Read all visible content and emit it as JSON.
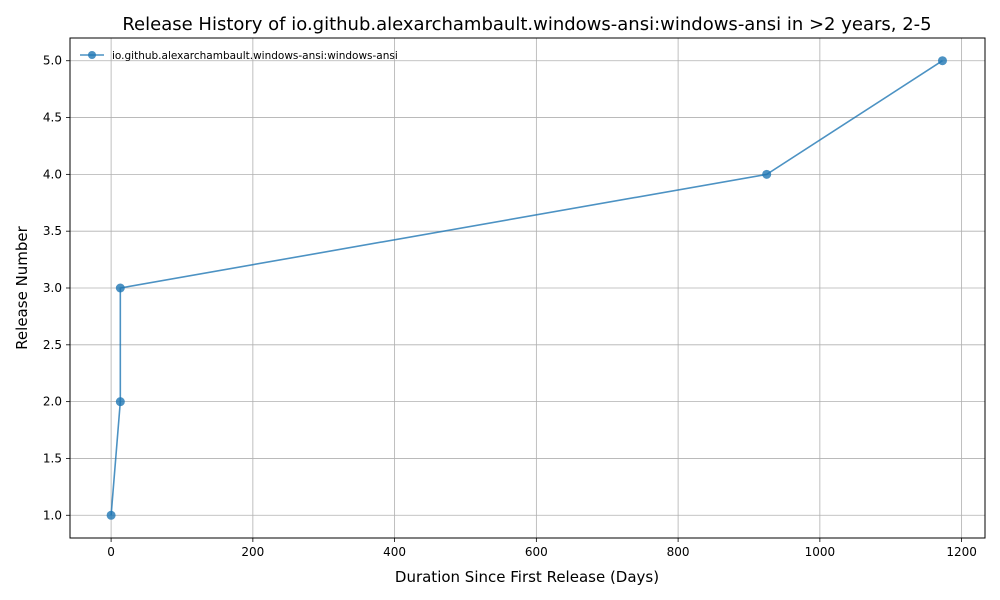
{
  "chart_data": {
    "type": "line",
    "title": "Release History of io.github.alexarchambault.windows-ansi:windows-ansi in >2 years, 2-5",
    "xlabel": "Duration Since First Release (Days)",
    "ylabel": "Release Number",
    "xlim": [
      -58,
      1233
    ],
    "ylim": [
      0.8,
      5.2
    ],
    "xticks": [
      0,
      200,
      400,
      600,
      800,
      1000,
      1200
    ],
    "yticks": [
      1.0,
      1.5,
      2.0,
      2.5,
      3.0,
      3.5,
      4.0,
      4.5,
      5.0
    ],
    "xtick_labels": [
      "0",
      "200",
      "400",
      "600",
      "800",
      "1000",
      "1200"
    ],
    "ytick_labels": [
      "1.0",
      "1.5",
      "2.0",
      "2.5",
      "3.0",
      "3.5",
      "4.0",
      "4.5",
      "5.0"
    ],
    "grid": true,
    "legend_position": "top-left",
    "series": [
      {
        "name": "io.github.alexarchambault.windows-ansi:windows-ansi",
        "color": "#1f77b4",
        "marker": "circle",
        "x": [
          0,
          13,
          13,
          925,
          1173
        ],
        "y": [
          1,
          2,
          3,
          4,
          5
        ]
      }
    ]
  }
}
